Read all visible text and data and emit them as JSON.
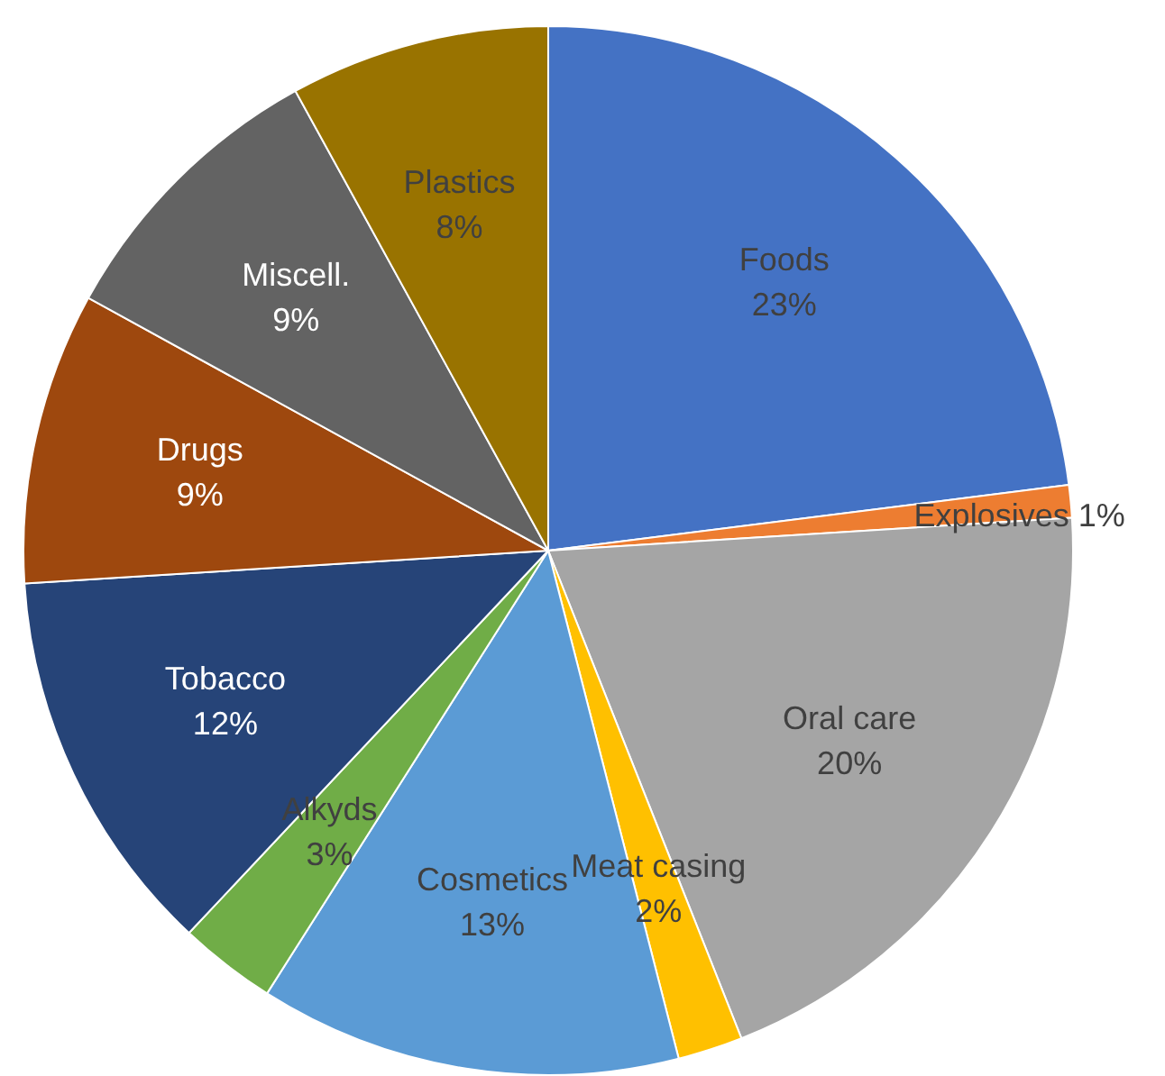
{
  "chart_data": {
    "type": "pie",
    "categories": [
      "Foods",
      "Explosives",
      "Oral care",
      "Meat casing",
      "Cosmetics",
      "Alkyds",
      "Tobacco",
      "Drugs",
      "Miscell.",
      "Plastics"
    ],
    "values": [
      23,
      1,
      20,
      2,
      13,
      3,
      12,
      9,
      9,
      8
    ],
    "colors": [
      "#4472c4",
      "#ed7d31",
      "#a5a5a5",
      "#ffc000",
      "#5b9bd5",
      "#70ad47",
      "#264478",
      "#9e480e",
      "#636363",
      "#997300"
    ],
    "value_labels": [
      "23%",
      "1%",
      "20%",
      "2%",
      "13%",
      "3%",
      "12%",
      "9%",
      "9%",
      "8%"
    ],
    "legend": false
  }
}
